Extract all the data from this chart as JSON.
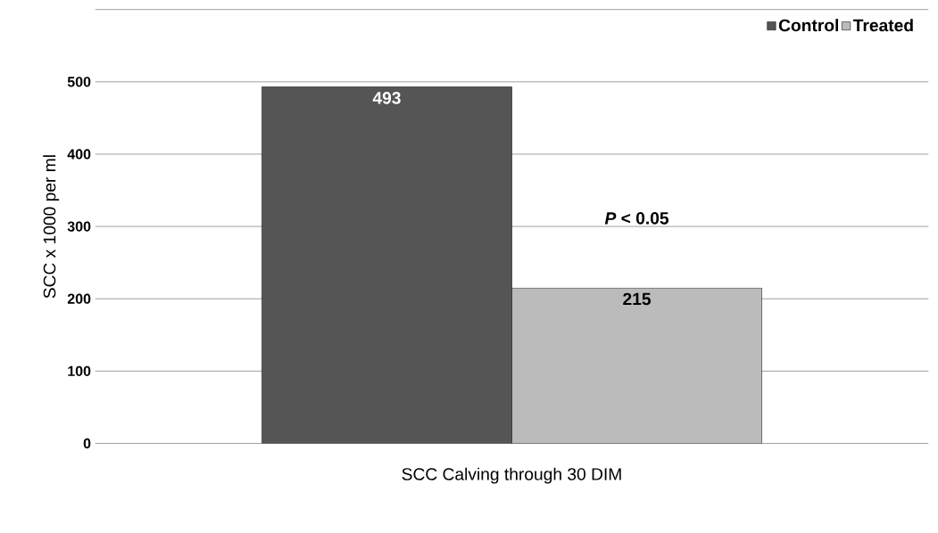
{
  "chart_data": {
    "type": "bar",
    "xlabel": "SCC Calving through 30 DIM",
    "ylabel": "SCC x 1000 per ml",
    "categories": [
      null
    ],
    "series": [
      {
        "name": "Control",
        "color": "#555555",
        "values": [
          493
        ]
      },
      {
        "name": "Treated",
        "color": "#bbbbbb",
        "values": [
          215
        ]
      }
    ],
    "ylim": [
      0,
      600
    ],
    "yticks": [
      0,
      100,
      200,
      300,
      400,
      500,
      {
        "value": 600,
        "label": null
      }
    ],
    "grid": "y",
    "legend": "top right",
    "data_labels": true,
    "annotations": [
      "*P* < 0.05"
    ]
  }
}
